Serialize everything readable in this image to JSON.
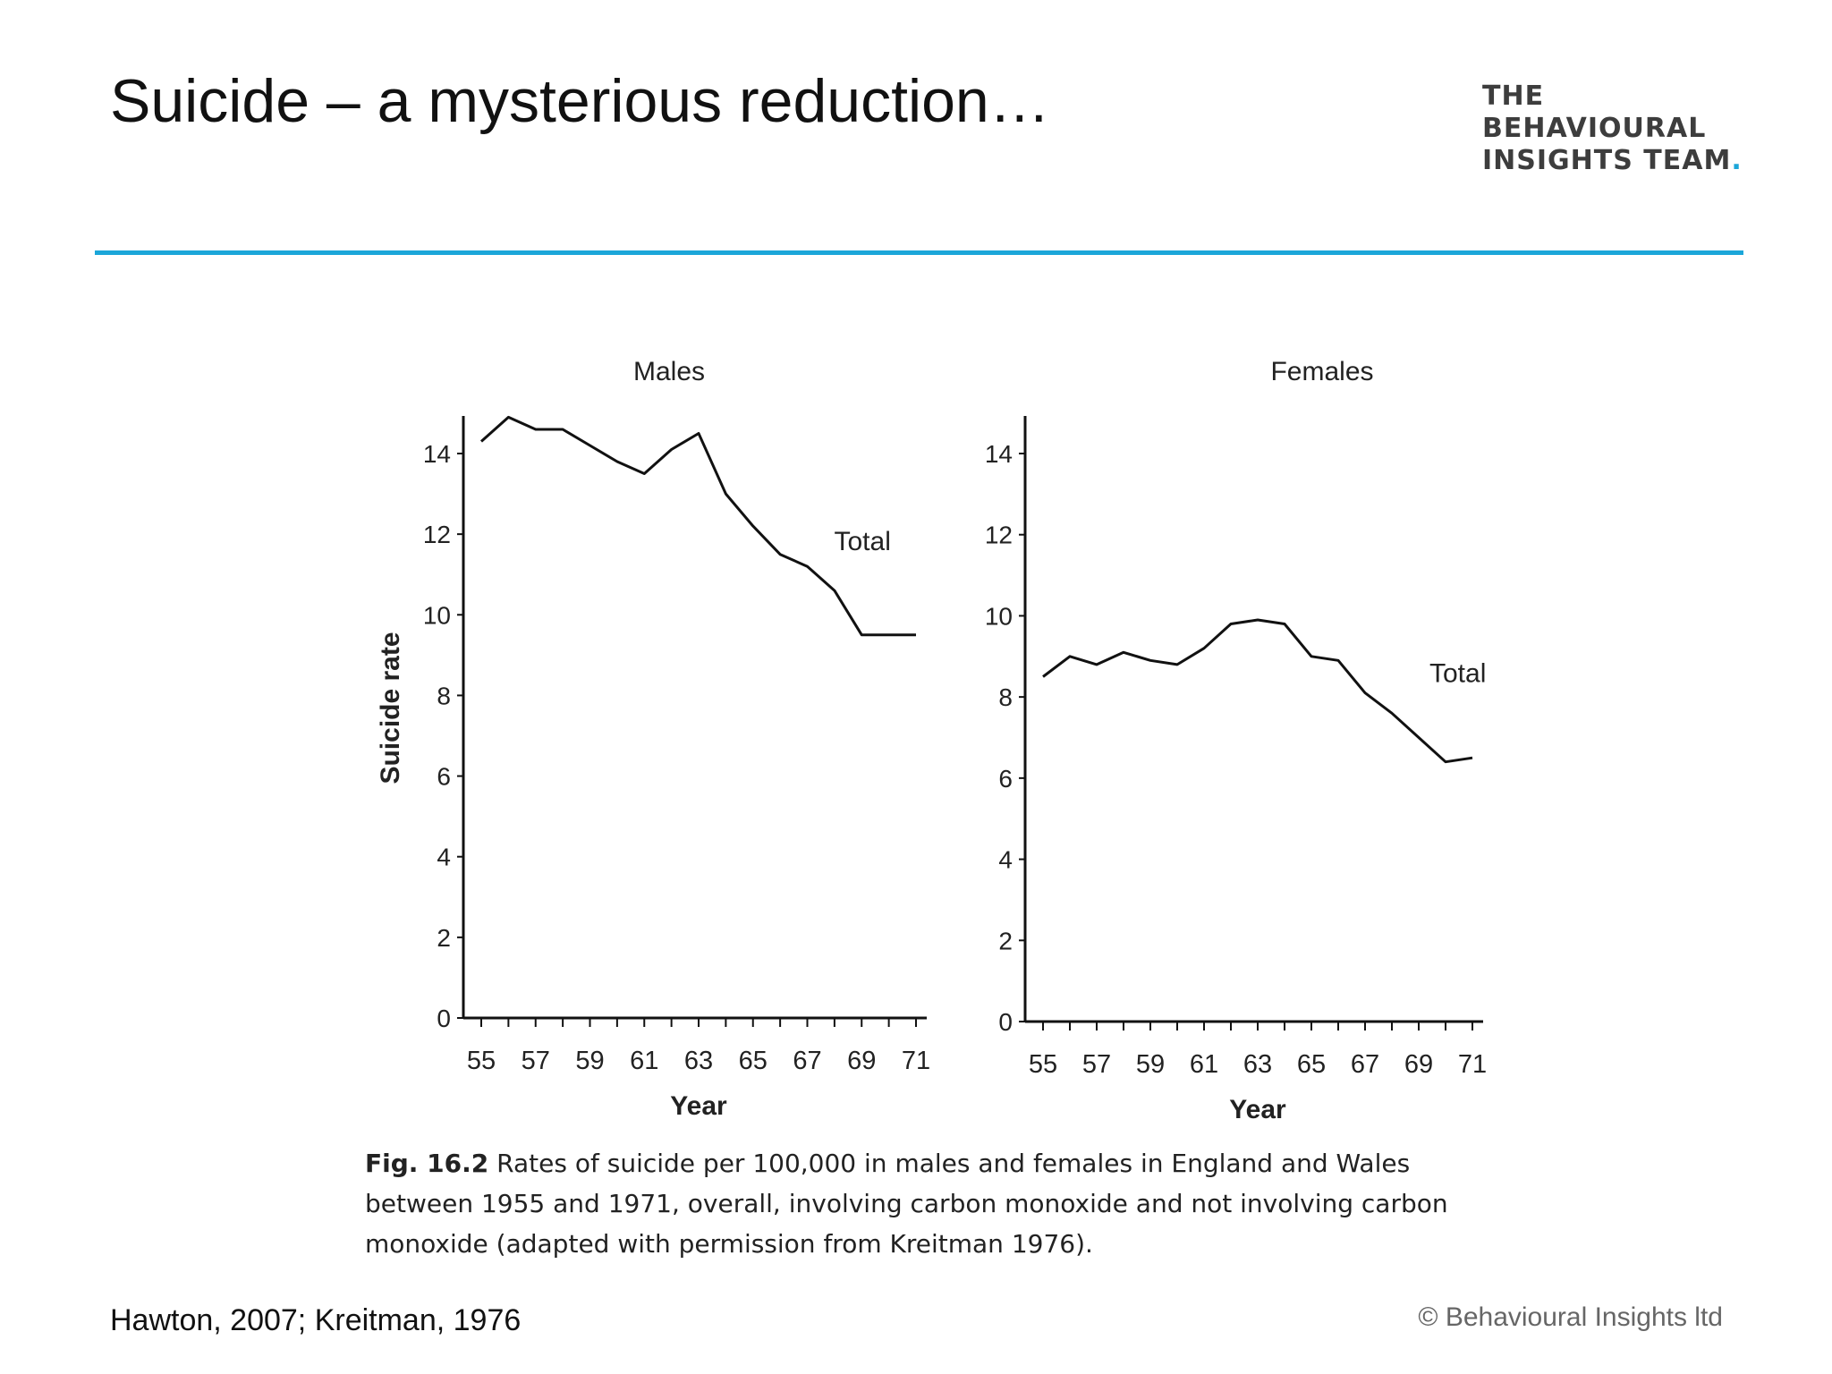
{
  "slide": {
    "title": "Suicide – a mysterious reduction…",
    "logo_lines": [
      "THE",
      "BEHAVIOURAL",
      "INSIGHTS TEAM"
    ],
    "logo_dot": ".",
    "accent_color": "#1ba6d9",
    "source": "Hawton, 2007; Kreitman, 1976",
    "copyright": "© Behavioural Insights ltd"
  },
  "caption": {
    "label": "Fig. 16.2",
    "text": " Rates of suicide per 100,000 in males and females in England and Wales between 1955 and 1971, overall, involving carbon monoxide and not involving carbon monoxide (adapted with permission from Kreitman 1976)."
  },
  "chart_data": [
    {
      "type": "line",
      "title": "Males",
      "xlabel": "Year",
      "ylabel": "Suicide rate",
      "xlim": [
        55,
        71
      ],
      "ylim": [
        0,
        15
      ],
      "xticks": [
        55,
        57,
        59,
        61,
        63,
        65,
        67,
        69,
        71
      ],
      "yticks": [
        0,
        2,
        4,
        6,
        8,
        10,
        12,
        14
      ],
      "grid": false,
      "series": [
        {
          "name": "Total",
          "x": [
            55,
            56,
            57,
            58,
            59,
            60,
            61,
            62,
            63,
            64,
            65,
            66,
            67,
            68,
            69,
            70,
            71
          ],
          "values": [
            14.3,
            14.9,
            14.6,
            14.6,
            14.2,
            13.8,
            13.5,
            14.1,
            14.5,
            13.0,
            12.2,
            11.5,
            11.2,
            10.6,
            9.5,
            9.5,
            9.5
          ]
        }
      ]
    },
    {
      "type": "line",
      "title": "Females",
      "xlabel": "Year",
      "ylabel": "",
      "xlim": [
        55,
        71
      ],
      "ylim": [
        0,
        15
      ],
      "xticks": [
        55,
        57,
        59,
        61,
        63,
        65,
        67,
        69,
        71
      ],
      "yticks": [
        0,
        2,
        4,
        6,
        8,
        10,
        12,
        14
      ],
      "grid": false,
      "series": [
        {
          "name": "Total",
          "x": [
            55,
            56,
            57,
            58,
            59,
            60,
            61,
            62,
            63,
            64,
            65,
            66,
            67,
            68,
            69,
            70,
            71
          ],
          "values": [
            8.5,
            9.0,
            8.8,
            9.1,
            8.9,
            8.8,
            9.2,
            9.8,
            9.9,
            9.8,
            9.0,
            8.9,
            8.1,
            7.6,
            7.0,
            6.4,
            6.5
          ]
        }
      ]
    }
  ]
}
